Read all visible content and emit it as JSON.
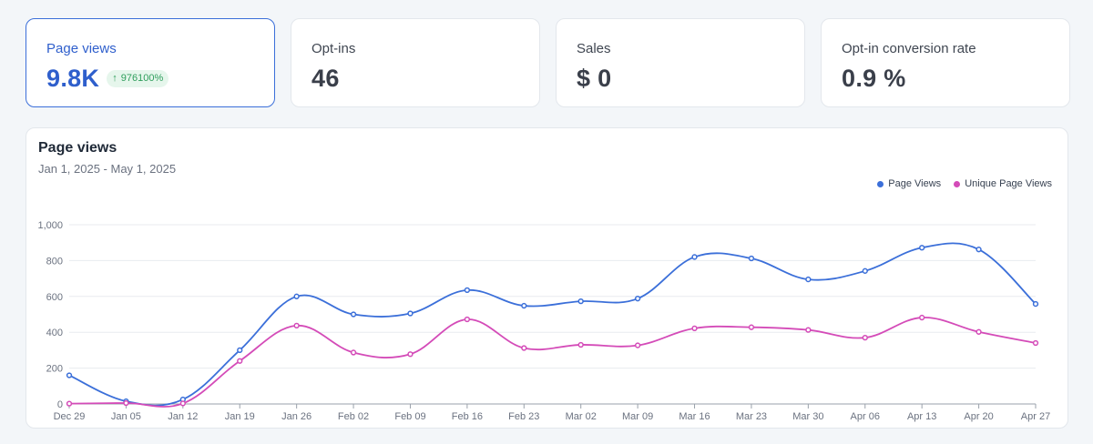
{
  "stats": [
    {
      "label": "Page views",
      "value": "9.8K",
      "badge": "976100%",
      "active": true
    },
    {
      "label": "Opt-ins",
      "value": "46"
    },
    {
      "label": "Sales",
      "value": "$ 0"
    },
    {
      "label": "Opt-in conversion rate",
      "value": "0.9 %"
    }
  ],
  "chart": {
    "title": "Page views",
    "subtitle": "Jan 1, 2025 - May 1, 2025"
  },
  "colors": {
    "page_views": "#3b6fd9",
    "unique_page_views": "#d44bb8",
    "accent": "#2f5fcc",
    "badge_text": "#2f9e5c"
  },
  "chart_data": {
    "type": "line",
    "categories": [
      "Dec 29",
      "Jan 05",
      "Jan 12",
      "Jan 19",
      "Jan 26",
      "Feb 02",
      "Feb 09",
      "Feb 16",
      "Feb 23",
      "Mar 02",
      "Mar 09",
      "Mar 16",
      "Mar 23",
      "Mar 30",
      "Apr 06",
      "Apr 13",
      "Apr 20",
      "Apr 27"
    ],
    "series": [
      {
        "name": "Page Views",
        "values": [
          160,
          15,
          25,
          300,
          600,
          500,
          505,
          635,
          548,
          573,
          588,
          820,
          812,
          695,
          742,
          872,
          862,
          558
        ]
      },
      {
        "name": "Unique Page Views",
        "values": [
          2,
          5,
          3,
          240,
          437,
          287,
          278,
          472,
          312,
          330,
          327,
          422,
          428,
          413,
          370,
          482,
          402,
          340
        ]
      }
    ],
    "ylim": [
      0,
      1000
    ],
    "yticks": [
      "0",
      "200",
      "400",
      "600",
      "800",
      "1,000"
    ],
    "grid": true,
    "legend": "top-right"
  }
}
